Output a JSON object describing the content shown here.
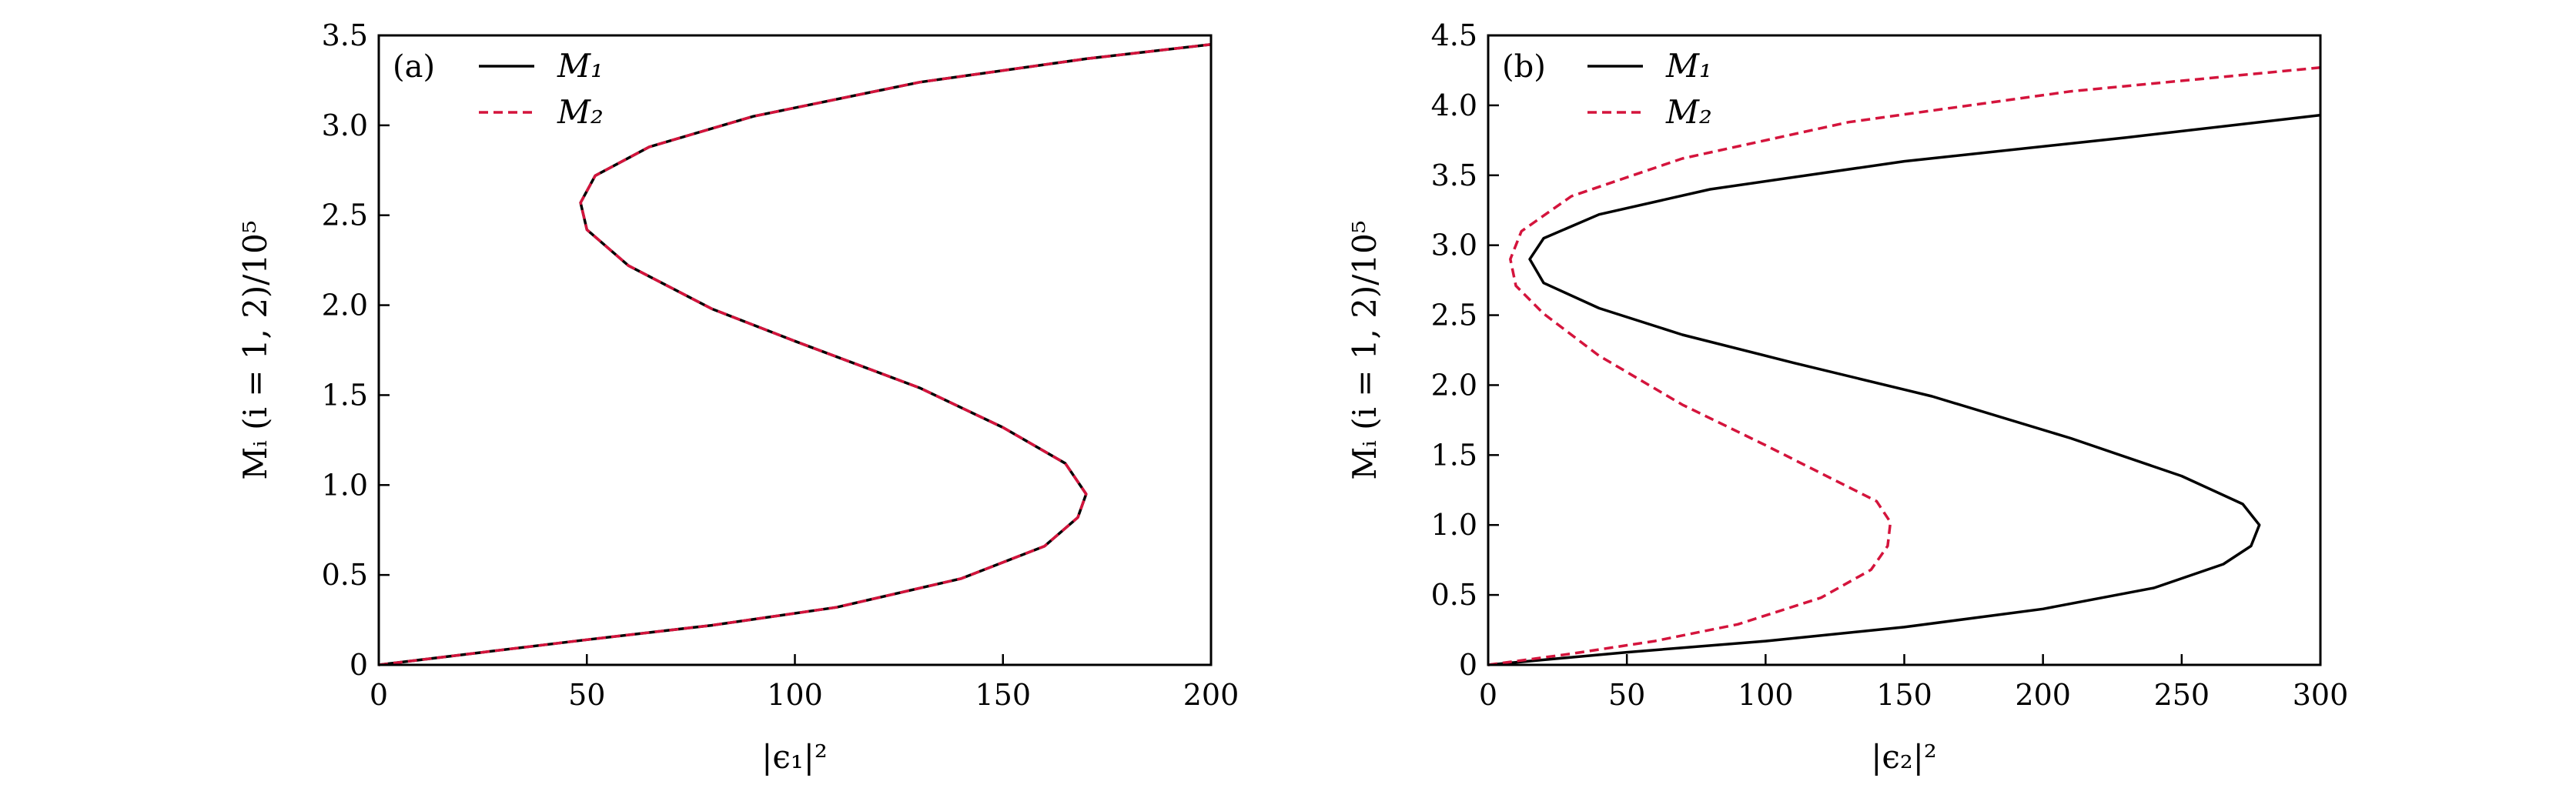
{
  "chart_data": [
    {
      "type": "line",
      "panel_label": "(a)",
      "xlabel": "|ϵ₁|²",
      "ylabel": "Mᵢ (i = 1, 2)/10⁵",
      "xlim": [
        0,
        200
      ],
      "ylim": [
        0,
        3.5
      ],
      "xticks": [
        0,
        50,
        100,
        150,
        200
      ],
      "yticks": [
        0,
        0.5,
        1.0,
        1.5,
        2.0,
        2.5,
        3.0,
        3.5
      ],
      "xtick_labels": [
        "0",
        "50",
        "100",
        "150",
        "200"
      ],
      "ytick_labels": [
        "0",
        "0.5",
        "1.0",
        "1.5",
        "2.0",
        "2.5",
        "3.0",
        "3.5"
      ],
      "grid": false,
      "legend": "top-left",
      "series": [
        {
          "name": "M₁",
          "color": "#000000",
          "dash": "solid",
          "x": [
            0,
            25,
            50,
            80,
            110,
            140,
            160,
            168,
            170,
            165,
            150,
            130,
            100,
            80,
            60,
            50,
            48.5,
            52,
            65,
            90,
            130,
            170,
            200
          ],
          "y": [
            0,
            0.07,
            0.14,
            0.22,
            0.32,
            0.48,
            0.66,
            0.82,
            0.95,
            1.12,
            1.32,
            1.54,
            1.8,
            1.98,
            2.22,
            2.42,
            2.57,
            2.72,
            2.88,
            3.05,
            3.24,
            3.37,
            3.45
          ]
        },
        {
          "name": "M₂",
          "color": "#d4143c",
          "dash": "dashed",
          "x": [
            0,
            25,
            50,
            80,
            110,
            140,
            160,
            168,
            170,
            165,
            150,
            130,
            100,
            80,
            60,
            50,
            48.5,
            52,
            65,
            90,
            130,
            170,
            200
          ],
          "y": [
            0,
            0.07,
            0.14,
            0.22,
            0.32,
            0.48,
            0.66,
            0.82,
            0.95,
            1.12,
            1.32,
            1.54,
            1.8,
            1.98,
            2.22,
            2.42,
            2.57,
            2.72,
            2.88,
            3.05,
            3.24,
            3.37,
            3.45
          ]
        }
      ]
    },
    {
      "type": "line",
      "panel_label": "(b)",
      "xlabel": "|ϵ₂|²",
      "ylabel": "Mᵢ (i = 1, 2)/10⁵",
      "xlim": [
        0,
        300
      ],
      "ylim": [
        0,
        4.5
      ],
      "xticks": [
        0,
        50,
        100,
        150,
        200,
        250,
        300
      ],
      "yticks": [
        0,
        0.5,
        1.0,
        1.5,
        2.0,
        2.5,
        3.0,
        3.5,
        4.0,
        4.5
      ],
      "xtick_labels": [
        "0",
        "50",
        "100",
        "150",
        "200",
        "250",
        "300"
      ],
      "ytick_labels": [
        "0",
        "0.5",
        "1.0",
        "1.5",
        "2.0",
        "2.5",
        "3.0",
        "3.5",
        "4.0",
        "4.5"
      ],
      "grid": false,
      "legend": "top-left",
      "series": [
        {
          "name": "M₁",
          "color": "#000000",
          "dash": "solid",
          "x": [
            0,
            50,
            100,
            150,
            200,
            240,
            265,
            275,
            278,
            272,
            250,
            210,
            160,
            110,
            70,
            40,
            20,
            15,
            20,
            40,
            80,
            150,
            230,
            300
          ],
          "y": [
            0,
            0.09,
            0.17,
            0.27,
            0.4,
            0.55,
            0.72,
            0.85,
            1.0,
            1.15,
            1.35,
            1.62,
            1.92,
            2.16,
            2.36,
            2.55,
            2.73,
            2.9,
            3.05,
            3.22,
            3.4,
            3.6,
            3.77,
            3.93
          ]
        },
        {
          "name": "M₂",
          "color": "#d4143c",
          "dash": "dashed",
          "x": [
            0,
            30,
            60,
            90,
            120,
            138,
            144,
            145,
            140,
            125,
            100,
            70,
            40,
            20,
            10,
            8,
            12,
            30,
            70,
            130,
            210,
            300
          ],
          "y": [
            0,
            0.08,
            0.17,
            0.29,
            0.48,
            0.68,
            0.85,
            1.02,
            1.17,
            1.32,
            1.57,
            1.86,
            2.21,
            2.51,
            2.71,
            2.9,
            3.1,
            3.35,
            3.62,
            3.88,
            4.1,
            4.27
          ]
        }
      ]
    }
  ]
}
